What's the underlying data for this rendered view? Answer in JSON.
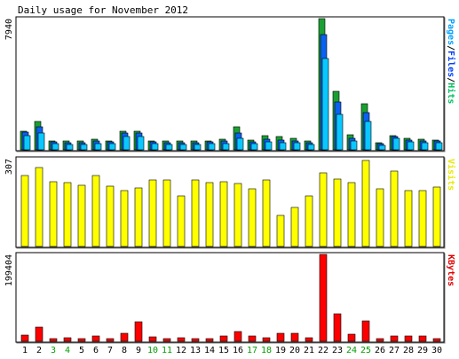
{
  "chart_data": {
    "type": "bar",
    "title": "Daily usage for November 2012",
    "days": [
      "1",
      "2",
      "3",
      "4",
      "5",
      "6",
      "7",
      "8",
      "9",
      "10",
      "11",
      "12",
      "13",
      "14",
      "15",
      "16",
      "17",
      "18",
      "19",
      "20",
      "21",
      "22",
      "23",
      "24",
      "25",
      "26",
      "27",
      "28",
      "29",
      "30"
    ],
    "weekend_days": [
      "3",
      "4",
      "10",
      "11",
      "17",
      "18",
      "24",
      "25"
    ],
    "panels": [
      {
        "id": "hits",
        "label_parts": [
          "Pages",
          "/",
          "Files",
          "/",
          "Hits"
        ],
        "label_colors": [
          "#00a0ff",
          "#000000",
          "#0040ff",
          "#000000",
          "#00c060"
        ],
        "ymax_label": "7940",
        "ymax": 7940,
        "series": [
          {
            "name": "Hits",
            "color": "#1aa032",
            "values": [
              1125,
              1710,
              560,
              520,
              520,
              645,
              560,
              1100,
              1150,
              560,
              560,
              520,
              520,
              560,
              645,
              1370,
              600,
              860,
              800,
              690,
              520,
              7940,
              3530,
              920,
              2810,
              435,
              860,
              690,
              645,
              600
            ]
          },
          {
            "name": "Files",
            "color": "#0a60f0",
            "values": [
              1060,
              1380,
              480,
              430,
              430,
              560,
              480,
              1000,
              1030,
              480,
              450,
              430,
              430,
              480,
              560,
              1000,
              480,
              650,
              600,
              560,
              430,
              7000,
              2920,
              690,
              2240,
              350,
              780,
              600,
              560,
              520
            ]
          },
          {
            "name": "Pages",
            "color": "#0ac8ff",
            "values": [
              860,
              1030,
              350,
              300,
              300,
              390,
              350,
              780,
              800,
              350,
              320,
              300,
              300,
              350,
              390,
              690,
              350,
              480,
              450,
              430,
              300,
              5550,
              2160,
              520,
              1720,
              250,
              690,
              480,
              450,
              430
            ]
          }
        ]
      },
      {
        "id": "visits",
        "label_parts": [
          "Visits"
        ],
        "label_colors": [
          "#e8e800"
        ],
        "ymax_label": "307",
        "ymax": 307,
        "series": [
          {
            "name": "Visits",
            "color": "#ffff00",
            "values": [
              247,
              276,
              226,
              223,
              215,
              247,
              212,
              196,
              205,
              232,
              232,
              178,
              232,
              223,
              226,
              220,
              202,
              232,
              110,
              136,
              178,
              258,
              236,
              223,
              302,
              202,
              264,
              196,
              196,
              209
            ]
          }
        ]
      },
      {
        "id": "kbytes",
        "label_parts": [
          "KBytes"
        ],
        "label_colors": [
          "#e00000"
        ],
        "ymax_label": "199404",
        "ymax": 199404,
        "series": [
          {
            "name": "KBytes",
            "color": "#ff0000",
            "values": [
              14200,
              33400,
              6900,
              8400,
              5400,
              11500,
              7000,
              19200,
              44000,
              9200,
              6200,
              7700,
              5400,
              5400,
              11500,
              22300,
              13100,
              8400,
              18500,
              19200,
              8400,
              199404,
              64000,
              15400,
              46000,
              6900,
              11500,
              13100,
              12300,
              6900
            ]
          }
        ]
      }
    ]
  }
}
